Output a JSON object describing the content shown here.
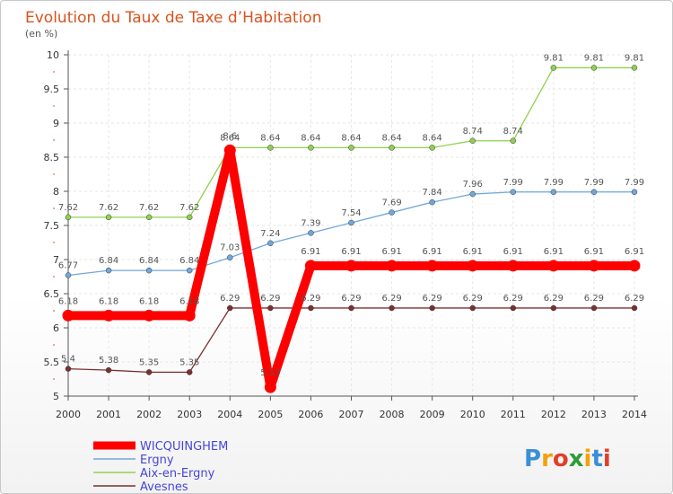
{
  "chart_data": {
    "type": "line",
    "title": "Evolution du Taux de Taxe d’Habitation",
    "unit_label": "(en %)",
    "x": [
      2000,
      2001,
      2002,
      2003,
      2004,
      2005,
      2006,
      2007,
      2008,
      2009,
      2010,
      2011,
      2012,
      2013,
      2014
    ],
    "ylim": [
      5,
      10
    ],
    "yticks": [
      5,
      5.5,
      6,
      6.5,
      7,
      7.5,
      8,
      8.5,
      9,
      9.5,
      10
    ],
    "grid": true,
    "legend_position": "bottom-left",
    "series": [
      {
        "name": "WICQUINGHEM",
        "color": "#ff0000",
        "values": [
          6.18,
          6.18,
          6.18,
          6.18,
          8.6,
          5.13,
          6.91,
          6.91,
          6.91,
          6.91,
          6.91,
          6.91,
          6.91,
          6.91,
          6.91
        ],
        "labels": [
          "6.18",
          "6.18",
          "6.18",
          "6.18",
          "8.6",
          "5.13",
          "6.91",
          "6.91",
          "6.91",
          "6.91",
          "6.91",
          "6.91",
          "6.91",
          "6.91",
          "6.91"
        ]
      },
      {
        "name": "Ergny",
        "color": "#6fa8dc",
        "values": [
          6.77,
          6.84,
          6.84,
          6.84,
          7.03,
          7.24,
          7.39,
          7.54,
          7.69,
          7.84,
          7.96,
          7.99,
          7.99,
          7.99,
          7.99
        ],
        "labels": [
          "6.77",
          "6.84",
          "6.84",
          "6.84",
          "7.03",
          "7.24",
          "7.39",
          "7.54",
          "7.69",
          "7.84",
          "7.96",
          "7.99",
          "7.99",
          "7.99",
          "7.99"
        ]
      },
      {
        "name": "Aix-en-Ergny",
        "color": "#8fd14f",
        "values": [
          7.62,
          7.62,
          7.62,
          7.62,
          8.64,
          8.64,
          8.64,
          8.64,
          8.64,
          8.64,
          8.74,
          8.74,
          9.81,
          9.81,
          9.81
        ],
        "labels": [
          "7.62",
          "7.62",
          "7.62",
          "7.62",
          "8.64",
          "8.64",
          "8.64",
          "8.64",
          "8.64",
          "8.64",
          "8.74",
          "8.74",
          "9.81",
          "9.81",
          "9.81"
        ]
      },
      {
        "name": "Avesnes",
        "color": "#7b3030",
        "values": [
          5.4,
          5.38,
          5.35,
          5.35,
          6.29,
          6.29,
          6.29,
          6.29,
          6.29,
          6.29,
          6.29,
          6.29,
          6.29,
          6.29,
          6.29
        ],
        "labels": [
          "5.4",
          "5.38",
          "5.35",
          "5.35",
          "6.29",
          "6.29",
          "6.29",
          "6.29",
          "6.29",
          "6.29",
          "6.29",
          "6.29",
          "6.29",
          "6.29",
          "6.29"
        ]
      }
    ]
  },
  "branding": {
    "logo_text": "Proxiti"
  }
}
